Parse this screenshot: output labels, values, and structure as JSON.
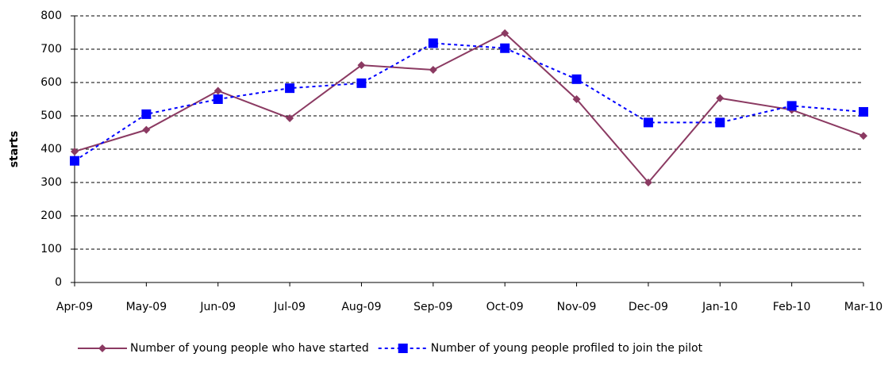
{
  "chart_data": {
    "type": "line",
    "y_label": "starts",
    "categories": [
      "Apr-09",
      "May-09",
      "Jun-09",
      "Jul-09",
      "Aug-09",
      "Sep-09",
      "Oct-09",
      "Nov-09",
      "Dec-09",
      "Jan-10",
      "Feb-10",
      "Mar-10"
    ],
    "series": [
      {
        "name": "Number of young people who have started",
        "color": "#8b3a62",
        "marker": "diamond",
        "dash": false,
        "values": [
          393,
          458,
          575,
          493,
          652,
          638,
          748,
          550,
          300,
          553,
          518,
          440
        ]
      },
      {
        "name": "Number of young people profiled to join the pilot",
        "color": "#0000ff",
        "marker": "square",
        "dash": true,
        "values": [
          365,
          505,
          550,
          583,
          598,
          718,
          703,
          610,
          480,
          480,
          530,
          512
        ]
      }
    ],
    "ylim": [
      0,
      800
    ],
    "yticks": [
      0,
      100,
      200,
      300,
      400,
      500,
      600,
      700,
      800
    ],
    "grid": true,
    "legend": "bottom"
  }
}
